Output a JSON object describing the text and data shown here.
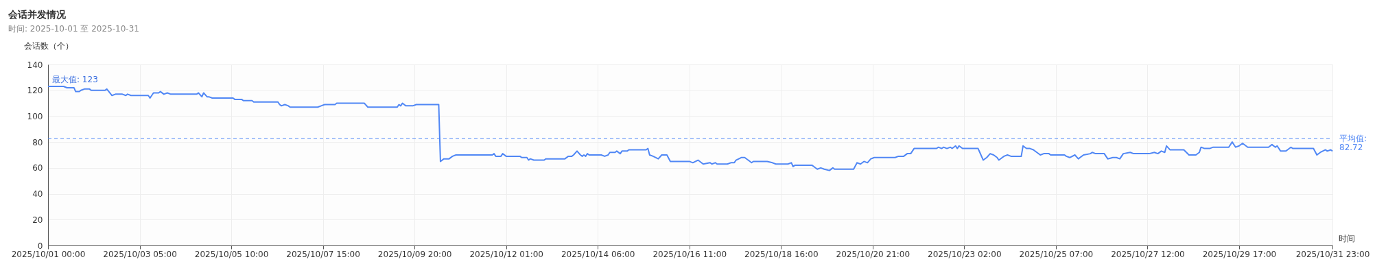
{
  "chart_data": {
    "type": "line",
    "title": "会话并发情况",
    "subtitle": "时间:  2025-10-01 至 2025-10-31",
    "xlabel": "时间",
    "ylabel": "会话数（个）",
    "x": [
      "2025-10-01T00:00",
      "2025-10-01T09:00",
      "2025-10-01T11:00",
      "2025-10-01T15:00",
      "2025-10-01T16:00",
      "2025-10-01T18:00",
      "2025-10-01T19:00",
      "2025-10-01T21:00",
      "2025-10-02T00:00",
      "2025-10-02T01:00",
      "2025-10-02T09:00",
      "2025-10-02T10:00",
      "2025-10-02T13:00",
      "2025-10-02T15:00",
      "2025-10-02T19:00",
      "2025-10-02T21:00",
      "2025-10-02T22:00",
      "2025-10-03T00:00",
      "2025-10-03T10:00",
      "2025-10-03T11:00",
      "2025-10-03T13:00",
      "2025-10-03T16:00",
      "2025-10-03T17:00",
      "2025-10-03T19:00",
      "2025-10-03T21:00",
      "2025-10-03T23:00",
      "2025-10-04T14:00",
      "2025-10-04T15:00",
      "2025-10-04T17:00",
      "2025-10-04T18:00",
      "2025-10-04T20:00",
      "2025-10-04T21:00",
      "2025-10-04T23:00",
      "2025-10-05T11:00",
      "2025-10-05T12:00",
      "2025-10-05T16:00",
      "2025-10-05T17:00",
      "2025-10-05T22:00",
      "2025-10-05T23:00",
      "2025-10-06T13:00",
      "2025-10-06T14:00",
      "2025-10-06T15:00",
      "2025-10-06T17:00",
      "2025-10-06T19:00",
      "2025-10-06T20:00",
      "2025-10-07T12:00",
      "2025-10-07T14:00",
      "2025-10-07T16:00",
      "2025-10-07T22:00",
      "2025-10-07T23:00",
      "2025-10-08T15:00",
      "2025-10-08T17:00",
      "2025-10-09T10:00",
      "2025-10-09T11:00",
      "2025-10-09T12:00",
      "2025-10-09T13:00",
      "2025-10-09T15:00",
      "2025-10-09T19:00",
      "2025-10-09T21:00",
      "2025-10-10T10:00",
      "2025-10-10T11:00",
      "2025-10-10T13:00",
      "2025-10-10T16:00",
      "2025-10-10T18:00",
      "2025-10-10T20:00",
      "2025-10-11T17:00",
      "2025-10-11T18:00",
      "2025-10-11T19:00",
      "2025-10-11T22:00",
      "2025-10-11T23:00",
      "2025-10-12T01:00",
      "2025-10-12T09:00",
      "2025-10-12T10:00",
      "2025-10-12T13:00",
      "2025-10-12T14:00",
      "2025-10-12T15:00",
      "2025-10-12T17:00",
      "2025-10-12T23:00",
      "2025-10-13T00:00",
      "2025-10-13T11:00",
      "2025-10-13T13:00",
      "2025-10-13T15:00",
      "2025-10-13T16:00",
      "2025-10-13T18:00",
      "2025-10-13T20:00",
      "2025-10-13T21:00",
      "2025-10-13T22:00",
      "2025-10-13T23:00",
      "2025-10-14T00:00",
      "2025-10-14T01:00",
      "2025-10-14T08:00",
      "2025-10-14T10:00",
      "2025-10-14T12:00",
      "2025-10-14T13:00",
      "2025-10-14T16:00",
      "2025-10-14T17:00",
      "2025-10-14T19:00",
      "2025-10-14T20:00",
      "2025-10-14T23:00",
      "2025-10-15T00:00",
      "2025-10-15T10:00",
      "2025-10-15T11:00",
      "2025-10-15T12:00",
      "2025-10-15T14:00",
      "2025-10-15T17:00",
      "2025-10-15T19:00",
      "2025-10-15T22:00",
      "2025-10-16T00:00",
      "2025-10-16T11:00",
      "2025-10-16T13:00",
      "2025-10-16T16:00",
      "2025-10-16T19:00",
      "2025-10-16T23:00",
      "2025-10-17T00:00",
      "2025-10-17T02:00",
      "2025-10-17T03:00",
      "2025-10-17T09:00",
      "2025-10-17T11:00",
      "2025-10-17T13:00",
      "2025-10-17T14:00",
      "2025-10-17T17:00",
      "2025-10-17T19:00",
      "2025-10-17T21:00",
      "2025-10-17T23:00",
      "2025-10-18T00:00",
      "2025-10-18T08:00",
      "2025-10-18T11:00",
      "2025-10-18T13:00",
      "2025-10-18T20:00",
      "2025-10-18T22:00",
      "2025-10-18T23:00",
      "2025-10-19T00:00",
      "2025-10-19T10:00",
      "2025-10-19T11:00",
      "2025-10-19T13:00",
      "2025-10-19T15:00",
      "2025-10-19T17:00",
      "2025-10-19T20:00",
      "2025-10-19T22:00",
      "2025-10-19T23:00",
      "2025-10-20T10:00",
      "2025-10-20T12:00",
      "2025-10-20T14:00",
      "2025-10-20T16:00",
      "2025-10-20T18:00",
      "2025-10-20T20:00",
      "2025-10-20T22:00",
      "2025-10-21T10:00",
      "2025-10-21T12:00",
      "2025-10-21T15:00",
      "2025-10-21T17:00",
      "2025-10-21T19:00",
      "2025-10-21T21:00",
      "2025-10-22T10:00",
      "2025-10-22T11:00",
      "2025-10-22T13:00",
      "2025-10-22T14:00",
      "2025-10-22T16:00",
      "2025-10-22T18:00",
      "2025-10-22T19:00",
      "2025-10-22T21:00",
      "2025-10-22T22:00",
      "2025-10-22T23:00",
      "2025-10-23T01:00",
      "2025-10-23T10:00",
      "2025-10-23T11:00",
      "2025-10-23T13:00",
      "2025-10-23T15:00",
      "2025-10-23T17:00",
      "2025-10-23T19:00",
      "2025-10-23T21:00",
      "2025-10-23T22:00",
      "2025-10-24T00:00",
      "2025-10-24T01:00",
      "2025-10-24T03:00",
      "2025-10-24T05:00",
      "2025-10-24T11:00",
      "2025-10-24T12:00",
      "2025-10-24T14:00",
      "2025-10-24T16:00",
      "2025-10-24T18:00",
      "2025-10-24T22:00",
      "2025-10-25T00:00",
      "2025-10-25T03:00",
      "2025-10-25T04:00",
      "2025-10-25T12:00",
      "2025-10-25T13:00",
      "2025-10-25T15:00",
      "2025-10-25T18:00",
      "2025-10-25T20:00",
      "2025-10-25T23:00",
      "2025-10-26T03:00",
      "2025-10-26T04:00",
      "2025-10-26T06:00",
      "2025-10-26T11:00",
      "2025-10-26T13:00",
      "2025-10-26T16:00",
      "2025-10-26T18:00",
      "2025-10-26T20:00",
      "2025-10-26T22:00",
      "2025-10-27T02:00",
      "2025-10-27T04:00",
      "2025-10-27T13:00",
      "2025-10-27T16:00",
      "2025-10-27T18:00",
      "2025-10-27T20:00",
      "2025-10-27T22:00",
      "2025-10-27T23:00",
      "2025-10-28T01:00",
      "2025-10-28T09:00",
      "2025-10-28T12:00",
      "2025-10-28T16:00",
      "2025-10-28T18:00",
      "2025-10-28T19:00",
      "2025-10-28T21:00",
      "2025-10-29T00:00",
      "2025-10-29T02:00",
      "2025-10-29T11:00",
      "2025-10-29T13:00",
      "2025-10-29T15:00",
      "2025-10-29T17:00",
      "2025-10-29T19:00",
      "2025-10-29T22:00",
      "2025-10-30T10:00",
      "2025-10-30T12:00",
      "2025-10-30T14:00",
      "2025-10-30T15:00",
      "2025-10-30T17:00",
      "2025-10-30T20:00",
      "2025-10-30T21:00",
      "2025-10-30T23:00",
      "2025-10-31T00:00",
      "2025-10-31T12:00",
      "2025-10-31T14:00",
      "2025-10-31T16:00",
      "2025-10-31T19:00",
      "2025-10-31T20:00",
      "2025-10-31T22:00",
      "2025-10-31T23:00"
    ],
    "series": [
      {
        "color": "#5087f5",
        "values": [
          123,
          123,
          122,
          122,
          119,
          119,
          120,
          121,
          121,
          120,
          120,
          121,
          116,
          117,
          117,
          116,
          117,
          116,
          116,
          114,
          118,
          118,
          119,
          117,
          118,
          117,
          117,
          118,
          115,
          118,
          115,
          115,
          114,
          114,
          113,
          113,
          112,
          112,
          111,
          111,
          109,
          108,
          109,
          108,
          107,
          107,
          108,
          109,
          109,
          110,
          110,
          107,
          107,
          109,
          108,
          110,
          108,
          108,
          109,
          109,
          65,
          67,
          67,
          69,
          70,
          70,
          71,
          69,
          69,
          71,
          69,
          69,
          68,
          68,
          66,
          67,
          66,
          66,
          67,
          67,
          69,
          69,
          70,
          73,
          70,
          69,
          70,
          69,
          71,
          70,
          70,
          69,
          70,
          72,
          72,
          73,
          71,
          73,
          73,
          74,
          74,
          75,
          70,
          69,
          67,
          70,
          70,
          65,
          65,
          64,
          66,
          63,
          64,
          63,
          64,
          63,
          63,
          64,
          64,
          66,
          68,
          68,
          66,
          64,
          65,
          65,
          64,
          63,
          63,
          64,
          61,
          62,
          62,
          61,
          59,
          60,
          59,
          58,
          60,
          59,
          59,
          64,
          63,
          65,
          64,
          67,
          68,
          68,
          69,
          69,
          71,
          71,
          75,
          75,
          76,
          75,
          76,
          75,
          76,
          75,
          77,
          75,
          77,
          75,
          75,
          72,
          66,
          68,
          71,
          70,
          68,
          66,
          68,
          69,
          70,
          69,
          69,
          77,
          75,
          75,
          74,
          70,
          71,
          71,
          70,
          70,
          69,
          68,
          70,
          67,
          70,
          71,
          72,
          71,
          71,
          67,
          68,
          68,
          67,
          71,
          72,
          71,
          71,
          72,
          71,
          73,
          72,
          77,
          74,
          74,
          70,
          70,
          72,
          76,
          75,
          75,
          76,
          76,
          80,
          76,
          77,
          79,
          76,
          76,
          78,
          76,
          77,
          73,
          73,
          74,
          76,
          75,
          75,
          70,
          72,
          74,
          73,
          74,
          73
        ]
      }
    ],
    "xlim": [
      "2025-10-01T00:00",
      "2025-10-31T23:00"
    ],
    "xticks": [
      {
        "value": "2025-10-01T00:00",
        "label": "2025/10/01 00:00"
      },
      {
        "value": "2025-10-03T05:00",
        "label": "2025/10/03 05:00"
      },
      {
        "value": "2025-10-05T10:00",
        "label": "2025/10/05 10:00"
      },
      {
        "value": "2025-10-07T15:00",
        "label": "2025/10/07 15:00"
      },
      {
        "value": "2025-10-09T20:00",
        "label": "2025/10/09 20:00"
      },
      {
        "value": "2025-10-12T01:00",
        "label": "2025/10/12 01:00"
      },
      {
        "value": "2025-10-14T06:00",
        "label": "2025/10/14 06:00"
      },
      {
        "value": "2025-10-16T11:00",
        "label": "2025/10/16 11:00"
      },
      {
        "value": "2025-10-18T16:00",
        "label": "2025/10/18 16:00"
      },
      {
        "value": "2025-10-20T21:00",
        "label": "2025/10/20 21:00"
      },
      {
        "value": "2025-10-23T02:00",
        "label": "2025/10/23 02:00"
      },
      {
        "value": "2025-10-25T07:00",
        "label": "2025/10/25 07:00"
      },
      {
        "value": "2025-10-27T12:00",
        "label": "2025/10/27 12:00"
      },
      {
        "value": "2025-10-29T17:00",
        "label": "2025/10/29 17:00"
      },
      {
        "value": "2025-10-31T23:00",
        "label": "2025/10/31 23:00"
      }
    ],
    "ylim": [
      0,
      140
    ],
    "yticks": [
      0,
      20,
      40,
      60,
      80,
      100,
      120,
      140
    ],
    "grid": true,
    "ref_lines": [
      {
        "axis": "y",
        "value": 82.72,
        "label": "平均值: 82.72",
        "color": "#5087f5",
        "line_style": "dashed"
      }
    ],
    "annotations": [
      {
        "text": "最大值: 123",
        "x": "2025-10-01T00:00",
        "y": 123
      }
    ]
  }
}
